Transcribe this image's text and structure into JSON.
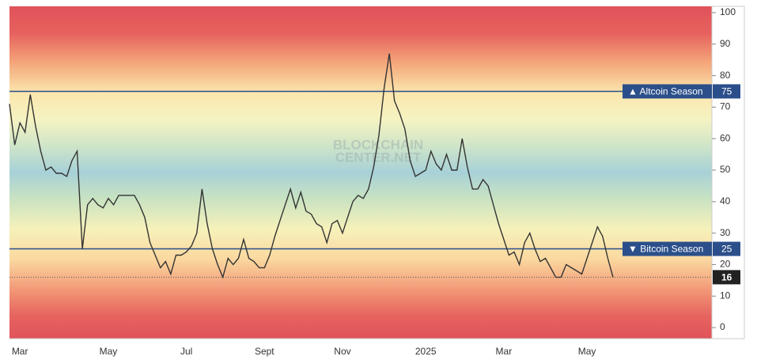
{
  "chart_data": {
    "type": "line",
    "watermark": [
      "BLOCKCHAIN",
      "CENTER.NET"
    ],
    "categories": [
      null,
      null,
      "Mar",
      null,
      null,
      null,
      null,
      null,
      null,
      null,
      null,
      null,
      null,
      null,
      null,
      null,
      null,
      null,
      null,
      "May",
      null,
      null,
      null,
      null,
      null,
      null,
      null,
      null,
      null,
      null,
      null,
      null,
      null,
      null,
      "Jul",
      null,
      null,
      null,
      null,
      null,
      null,
      null,
      null,
      null,
      null,
      null,
      null,
      null,
      null,
      "Sept",
      null,
      null,
      null,
      null,
      null,
      null,
      null,
      null,
      null,
      null,
      null,
      null,
      null,
      null,
      "Nov",
      null,
      null,
      null,
      null,
      null,
      null,
      null,
      null,
      null,
      null,
      null,
      null,
      null,
      null,
      null,
      "2025",
      null,
      null,
      null,
      null,
      null,
      null,
      null,
      null,
      null,
      null,
      null,
      null,
      null,
      null,
      "Mar",
      null,
      null,
      null,
      null,
      null,
      null,
      null,
      null,
      null,
      null,
      null,
      null,
      null,
      null,
      null,
      "May",
      null,
      null,
      null,
      null,
      null
    ],
    "series": [
      {
        "color": "#333333",
        "values": [
          71,
          58,
          65,
          62,
          74,
          64,
          56,
          50,
          51,
          49,
          49,
          48,
          53,
          56,
          25,
          39,
          41,
          39,
          38,
          41,
          39,
          42,
          42,
          42,
          42,
          39,
          35,
          27,
          23,
          19,
          21,
          17,
          23,
          23,
          24,
          26,
          30,
          44,
          33,
          25,
          20,
          16,
          22,
          20,
          22,
          28,
          22,
          21,
          19,
          19,
          23,
          29,
          34,
          39,
          44,
          38,
          43,
          37,
          36,
          33,
          32,
          27,
          33,
          34,
          30,
          35,
          40,
          42,
          41,
          44,
          51,
          61,
          76,
          87,
          72,
          68,
          63,
          53,
          48,
          49,
          50,
          56,
          52,
          50,
          55,
          50,
          50,
          60,
          51,
          44,
          44,
          47,
          45,
          39,
          33,
          28,
          23,
          24,
          20,
          27,
          30,
          25,
          21,
          22,
          19,
          16,
          16,
          20,
          19,
          18,
          17,
          22,
          27,
          32,
          29,
          22,
          16
        ]
      }
    ],
    "annotations": [
      {
        "label": "▲ Altcoin Season",
        "value": 75,
        "color": "#2b4f8a"
      },
      {
        "label": "▼ Bitcoin Season",
        "value": 25,
        "color": "#2b4f8a"
      }
    ],
    "ylim": [
      -3.5,
      102
    ],
    "yticks": [
      0,
      10,
      20,
      30,
      40,
      50,
      60,
      70,
      80,
      90,
      100
    ],
    "yaxis_side": "right"
  }
}
